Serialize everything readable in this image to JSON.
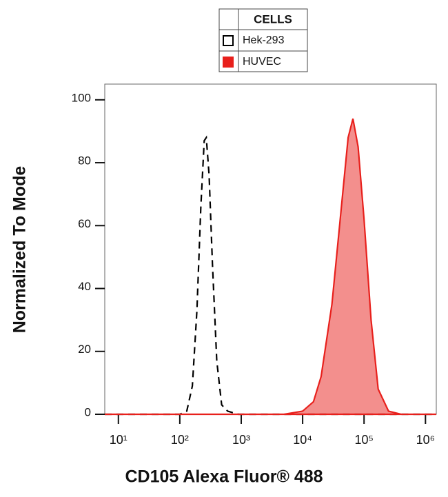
{
  "chart_data": {
    "type": "histogram-overlay",
    "xlabel": "CD105 Alexa Fluor® 488",
    "ylabel": "Normalized To Mode",
    "legend_title": "CELLS",
    "xscale": "log",
    "xlim": [
      6,
      1500000
    ],
    "ylim": [
      0,
      105
    ],
    "xticks": [
      {
        "value": 10,
        "label": "10¹"
      },
      {
        "value": 100,
        "label": "10²"
      },
      {
        "value": 1000,
        "label": "10³"
      },
      {
        "value": 10000,
        "label": "10⁴"
      },
      {
        "value": 100000,
        "label": "10⁵"
      },
      {
        "value": 1000000,
        "label": "10⁶"
      }
    ],
    "yticks": [
      0,
      20,
      40,
      60,
      80,
      100
    ],
    "series": [
      {
        "name": "Hek-293",
        "color": "#000000",
        "dashed": true,
        "filled": false,
        "x": [
          6,
          100,
          130,
          160,
          190,
          220,
          250,
          270,
          300,
          340,
          400,
          480,
          600,
          900,
          1500000
        ],
        "values": [
          0,
          0,
          1,
          9,
          33,
          66,
          87,
          88,
          76,
          48,
          17,
          3,
          1,
          0,
          0
        ]
      },
      {
        "name": "HUVEC",
        "color": "#e8201c",
        "dashed": false,
        "filled": true,
        "x": [
          6,
          5000,
          10000,
          15000,
          20000,
          30000,
          40000,
          55000,
          66000,
          80000,
          100000,
          130000,
          170000,
          250000,
          400000,
          1500000
        ],
        "values": [
          0,
          0,
          1,
          4,
          12,
          35,
          60,
          88,
          94,
          85,
          62,
          30,
          8,
          1,
          0,
          0
        ]
      }
    ]
  }
}
